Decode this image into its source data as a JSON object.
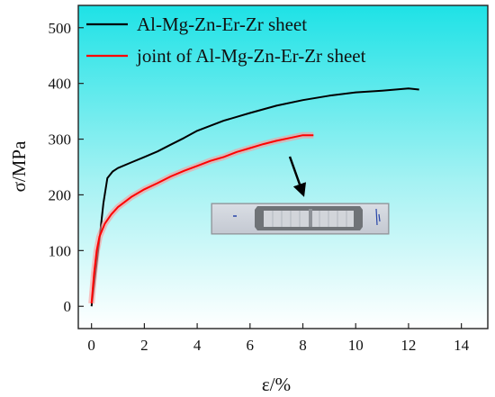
{
  "chart_data": {
    "type": "line",
    "title": "",
    "xlabel": "ε/%",
    "ylabel": "σ/MPa",
    "xlim": [
      -0.5,
      15
    ],
    "ylim": [
      -40,
      540
    ],
    "xticks": [
      0,
      2,
      4,
      6,
      8,
      10,
      12,
      14
    ],
    "yticks": [
      0,
      100,
      200,
      300,
      400,
      500
    ],
    "grid": false,
    "legend_position": "top-left",
    "background": "gradient cyan (top) to white (bottom)",
    "series": [
      {
        "name": "Al-Mg-Zn-Er-Zr sheet",
        "color": "#000000",
        "x": [
          0.0,
          0.15,
          0.3,
          0.45,
          0.6,
          0.8,
          1.0,
          1.5,
          2.0,
          2.5,
          3.0,
          3.5,
          4.0,
          5.0,
          6.0,
          7.0,
          8.0,
          9.0,
          10.0,
          11.0,
          12.0,
          12.4
        ],
        "y": [
          0,
          60,
          120,
          185,
          230,
          242,
          248,
          258,
          268,
          278,
          290,
          302,
          315,
          333,
          347,
          360,
          370,
          378,
          384,
          387,
          391,
          389
        ]
      },
      {
        "name": "joint of Al-Mg-Zn-Er-Zr sheet",
        "color": "#ff0000",
        "x": [
          0.0,
          0.1,
          0.2,
          0.3,
          0.5,
          0.75,
          1.0,
          1.5,
          2.0,
          2.5,
          3.0,
          3.5,
          4.0,
          4.5,
          5.0,
          5.5,
          6.0,
          6.5,
          7.0,
          7.5,
          8.0,
          8.4
        ],
        "y": [
          5,
          60,
          100,
          125,
          148,
          165,
          178,
          196,
          210,
          221,
          233,
          243,
          252,
          261,
          268,
          277,
          284,
          291,
          297,
          302,
          307,
          307
        ]
      }
    ]
  },
  "inset": {
    "arrow_color": "#000000"
  }
}
